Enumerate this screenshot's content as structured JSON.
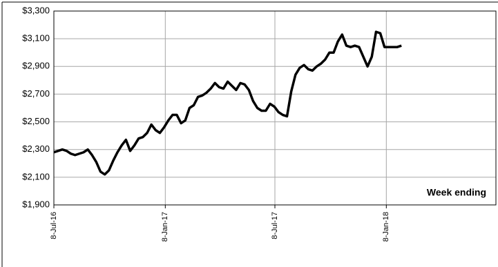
{
  "chart_data": {
    "type": "line",
    "annotation": "Week ending",
    "x": [
      "2016-07-08",
      "2016-07-15",
      "2016-07-22",
      "2016-07-29",
      "2016-08-05",
      "2016-08-12",
      "2016-08-19",
      "2016-08-26",
      "2016-09-02",
      "2016-09-09",
      "2016-09-16",
      "2016-09-23",
      "2016-09-30",
      "2016-10-07",
      "2016-10-14",
      "2016-10-21",
      "2016-10-28",
      "2016-11-04",
      "2016-11-11",
      "2016-11-18",
      "2016-11-25",
      "2016-12-02",
      "2016-12-09",
      "2016-12-16",
      "2016-12-23",
      "2016-12-30",
      "2017-01-06",
      "2017-01-13",
      "2017-01-20",
      "2017-01-27",
      "2017-02-03",
      "2017-02-10",
      "2017-02-17",
      "2017-02-24",
      "2017-03-03",
      "2017-03-10",
      "2017-03-17",
      "2017-03-24",
      "2017-03-31",
      "2017-04-07",
      "2017-04-14",
      "2017-04-21",
      "2017-04-28",
      "2017-05-05",
      "2017-05-12",
      "2017-05-19",
      "2017-05-26",
      "2017-06-02",
      "2017-06-09",
      "2017-06-16",
      "2017-06-23",
      "2017-06-30",
      "2017-07-07",
      "2017-07-14",
      "2017-07-21",
      "2017-07-28",
      "2017-08-04",
      "2017-08-11",
      "2017-08-18",
      "2017-08-25",
      "2017-09-01",
      "2017-09-08",
      "2017-09-15",
      "2017-09-22",
      "2017-09-29",
      "2017-10-06",
      "2017-10-13",
      "2017-10-20",
      "2017-10-27",
      "2017-11-03",
      "2017-11-10",
      "2017-11-17",
      "2017-11-24",
      "2017-12-01",
      "2017-12-08",
      "2017-12-15",
      "2017-12-22",
      "2017-12-29",
      "2018-01-05",
      "2018-01-12",
      "2018-01-19",
      "2018-01-26",
      "2018-02-02"
    ],
    "series": [
      {
        "color": "#000000",
        "values": [
          2280,
          2290,
          2300,
          2290,
          2270,
          2260,
          2270,
          2280,
          2300,
          2260,
          2210,
          2140,
          2120,
          2150,
          2220,
          2280,
          2330,
          2370,
          2290,
          2330,
          2380,
          2390,
          2420,
          2480,
          2440,
          2420,
          2460,
          2510,
          2550,
          2550,
          2490,
          2510,
          2600,
          2620,
          2680,
          2690,
          2710,
          2740,
          2780,
          2750,
          2740,
          2790,
          2760,
          2730,
          2780,
          2770,
          2730,
          2650,
          2600,
          2580,
          2580,
          2630,
          2610,
          2570,
          2550,
          2540,
          2720,
          2840,
          2890,
          2910,
          2880,
          2870,
          2900,
          2920,
          2950,
          3000,
          3000,
          3080,
          3130,
          3050,
          3040,
          3050,
          3040,
          2970,
          2900,
          2970,
          3150,
          3140,
          3040,
          3040,
          3040,
          3040,
          3050
        ]
      }
    ],
    "xlim": [
      "2016-07-08",
      "2018-07-08"
    ],
    "xticks": [
      {
        "value": "2016-07-08",
        "label": "8-Jul-16"
      },
      {
        "value": "2017-01-08",
        "label": "8-Jan-17"
      },
      {
        "value": "2017-07-08",
        "label": "8-Jul-17"
      },
      {
        "value": "2018-01-08",
        "label": "8-Jan-18"
      }
    ],
    "ylim": [
      1900,
      3300
    ],
    "yticks": [
      {
        "value": 1900,
        "label": "$1,900"
      },
      {
        "value": 2100,
        "label": "$2,100"
      },
      {
        "value": 2300,
        "label": "$2,300"
      },
      {
        "value": 2500,
        "label": "$2,500"
      },
      {
        "value": 2700,
        "label": "$2,700"
      },
      {
        "value": 2900,
        "label": "$2,900"
      },
      {
        "value": 3100,
        "label": "$3,100"
      },
      {
        "value": 3300,
        "label": "$3,300"
      }
    ],
    "grid": true
  }
}
